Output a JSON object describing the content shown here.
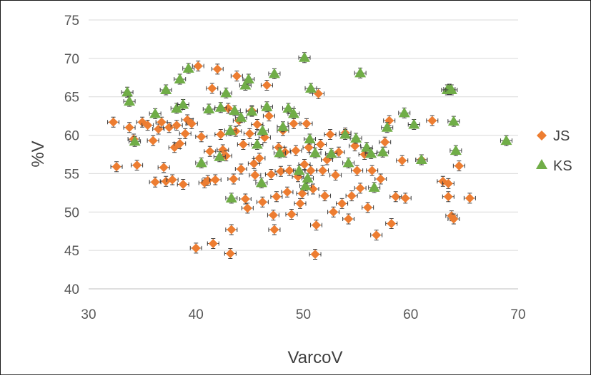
{
  "chart_data": {
    "type": "scatter",
    "xlabel": "VarcoV",
    "ylabel": "%V",
    "xlim": [
      30,
      70
    ],
    "ylim": [
      40,
      75
    ],
    "xticks": [
      "30",
      "40",
      "50",
      "60",
      "70"
    ],
    "yticks": [
      "40",
      "45",
      "50",
      "55",
      "60",
      "65",
      "70",
      "75"
    ],
    "grid": "horizontal",
    "legend_position": "right",
    "series": [
      {
        "name": "JS",
        "marker": "diamond",
        "color": "#ED7D31",
        "points": [
          [
            32.3,
            61.7
          ],
          [
            32.6,
            55.9
          ],
          [
            33.8,
            61
          ],
          [
            34.2,
            59.5
          ],
          [
            34.5,
            56.1
          ],
          [
            35,
            61.7
          ],
          [
            35.5,
            61.3
          ],
          [
            36,
            59.3
          ],
          [
            36.2,
            53.9
          ],
          [
            36.5,
            60.8
          ],
          [
            36.8,
            61.7
          ],
          [
            37,
            55.8
          ],
          [
            37.2,
            54
          ],
          [
            37.5,
            61
          ],
          [
            37.8,
            54.2
          ],
          [
            38,
            58.4
          ],
          [
            38.2,
            61.3
          ],
          [
            38.5,
            58.9
          ],
          [
            38.8,
            53.6
          ],
          [
            39,
            60.2
          ],
          [
            39.2,
            62
          ],
          [
            39.6,
            61.5
          ],
          [
            40,
            45.3
          ],
          [
            40.2,
            69
          ],
          [
            40.5,
            59.8
          ],
          [
            40.8,
            53.8
          ],
          [
            41.1,
            54.1
          ],
          [
            41.3,
            57.9
          ],
          [
            41.5,
            66.1
          ],
          [
            41.6,
            45.9
          ],
          [
            41.8,
            54.2
          ],
          [
            42,
            68.6
          ],
          [
            42.3,
            60.1
          ],
          [
            42.5,
            58.1
          ],
          [
            42.8,
            57.3
          ],
          [
            43,
            63.5
          ],
          [
            43.2,
            44.6
          ],
          [
            43.3,
            47.7
          ],
          [
            43.5,
            54.3
          ],
          [
            43.7,
            60.5
          ],
          [
            43.8,
            67.7
          ],
          [
            44,
            61.9
          ],
          [
            44.2,
            55.6
          ],
          [
            44.4,
            58.8
          ],
          [
            44.6,
            51.7
          ],
          [
            44.8,
            50.5
          ],
          [
            45,
            60.2
          ],
          [
            45.2,
            63.2
          ],
          [
            45.4,
            56.3
          ],
          [
            45.5,
            54.8
          ],
          [
            45.7,
            61.4
          ],
          [
            45.9,
            57
          ],
          [
            46.2,
            51.3
          ],
          [
            46.4,
            59.7
          ],
          [
            46.6,
            66.5
          ],
          [
            46.8,
            62.5
          ],
          [
            47,
            54.9
          ],
          [
            47.2,
            49.6
          ],
          [
            47.3,
            47.7
          ],
          [
            47.5,
            52
          ],
          [
            47.7,
            58.4
          ],
          [
            47.9,
            55.3
          ],
          [
            48.1,
            60.6
          ],
          [
            48.3,
            57.8
          ],
          [
            48.5,
            52.6
          ],
          [
            48.7,
            55.4
          ],
          [
            48.9,
            49.7
          ],
          [
            49.1,
            61.5
          ],
          [
            49.3,
            58
          ],
          [
            49.5,
            54.6
          ],
          [
            49.7,
            51.1
          ],
          [
            49.9,
            52.4
          ],
          [
            50.1,
            56.2
          ],
          [
            50.3,
            61.5
          ],
          [
            50.5,
            58.4
          ],
          [
            50.7,
            55.4
          ],
          [
            50.9,
            53
          ],
          [
            51.1,
            44.5
          ],
          [
            51.2,
            48.3
          ],
          [
            51.4,
            65.4
          ],
          [
            51.6,
            58.8
          ],
          [
            51.8,
            55.4
          ],
          [
            52,
            52.1
          ],
          [
            52.2,
            56.8
          ],
          [
            52.5,
            60.1
          ],
          [
            52.8,
            50
          ],
          [
            53,
            54.8
          ],
          [
            53.3,
            57.8
          ],
          [
            53.6,
            51.1
          ],
          [
            53.9,
            60.3
          ],
          [
            54.2,
            49.1
          ],
          [
            54.5,
            52.1
          ],
          [
            54.8,
            58.6
          ],
          [
            55,
            55.4
          ],
          [
            55.3,
            53.1
          ],
          [
            55.7,
            57.5
          ],
          [
            56,
            50.6
          ],
          [
            56.4,
            55.4
          ],
          [
            56.8,
            47
          ],
          [
            57.2,
            54.3
          ],
          [
            57.6,
            59.1
          ],
          [
            58,
            61.9
          ],
          [
            58.2,
            48.5
          ],
          [
            58.6,
            52
          ],
          [
            59.2,
            56.7
          ],
          [
            59.5,
            51.8
          ],
          [
            61,
            56.8
          ],
          [
            62,
            61.9
          ],
          [
            63,
            54
          ],
          [
            63.5,
            53.7
          ],
          [
            63.5,
            52
          ],
          [
            63.8,
            49.5
          ],
          [
            64,
            49.1
          ],
          [
            64.5,
            56
          ],
          [
            65.5,
            51.8
          ]
        ]
      },
      {
        "name": "KS",
        "marker": "triangle",
        "color": "#70AD47",
        "points": [
          [
            33.6,
            65.6
          ],
          [
            33.8,
            64.4
          ],
          [
            34.3,
            59.2
          ],
          [
            36.2,
            62.8
          ],
          [
            37.2,
            65.9
          ],
          [
            38.2,
            63.5
          ],
          [
            38.5,
            67.3
          ],
          [
            38.8,
            64
          ],
          [
            39.3,
            68.7
          ],
          [
            40.5,
            56.4
          ],
          [
            41.2,
            63.4
          ],
          [
            42.2,
            57.2
          ],
          [
            42.3,
            63.6
          ],
          [
            42.8,
            65.5
          ],
          [
            43.2,
            60.6
          ],
          [
            43.3,
            51.8
          ],
          [
            43.6,
            63.2
          ],
          [
            44.2,
            62.3
          ],
          [
            44.6,
            66.5
          ],
          [
            44.9,
            67.3
          ],
          [
            45.2,
            63.1
          ],
          [
            45.7,
            58.8
          ],
          [
            46.1,
            53.8
          ],
          [
            46.2,
            60.6
          ],
          [
            46.6,
            63.7
          ],
          [
            47.3,
            68
          ],
          [
            47.8,
            57.7
          ],
          [
            48.1,
            61.1
          ],
          [
            48.6,
            63.5
          ],
          [
            49.1,
            62.8
          ],
          [
            49.6,
            55.4
          ],
          [
            50.1,
            70.1
          ],
          [
            50.2,
            53.4
          ],
          [
            50.4,
            54.4
          ],
          [
            50.6,
            59.5
          ],
          [
            50.7,
            66.1
          ],
          [
            51.1,
            57.7
          ],
          [
            52.6,
            57.6
          ],
          [
            53.9,
            60.1
          ],
          [
            54.2,
            56.4
          ],
          [
            54.9,
            59.6
          ],
          [
            55.3,
            68.1
          ],
          [
            55.9,
            58.4
          ],
          [
            56.3,
            57.6
          ],
          [
            56.6,
            53.2
          ],
          [
            57.4,
            57.8
          ],
          [
            57.8,
            61
          ],
          [
            59.4,
            62.9
          ],
          [
            60.3,
            61.4
          ],
          [
            61,
            56.8
          ],
          [
            63.4,
            65.9
          ],
          [
            63.6,
            66
          ],
          [
            63.8,
            65.9
          ],
          [
            64,
            61.8
          ],
          [
            64.2,
            58
          ],
          [
            68.9,
            59.3
          ]
        ]
      }
    ]
  }
}
